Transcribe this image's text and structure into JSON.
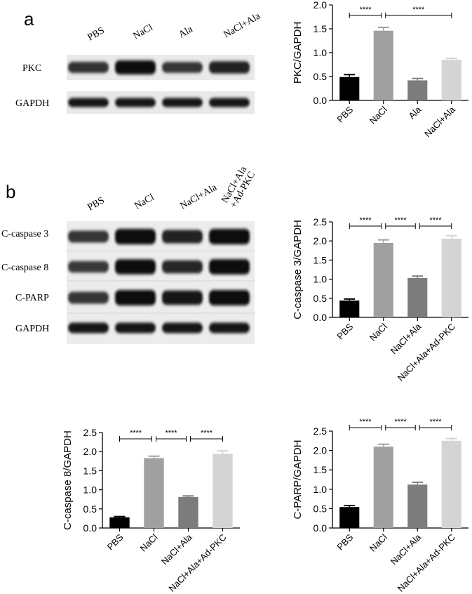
{
  "panels": {
    "a": {
      "label": "a",
      "blot": {
        "lanes": [
          "PBS",
          "NaCl",
          "Ala",
          "NaCl+Ala"
        ],
        "rows": [
          {
            "label": "PKC",
            "intensities": [
              0.55,
              1.0,
              0.5,
              0.72
            ]
          },
          {
            "label": "GAPDH",
            "intensities": [
              0.85,
              0.85,
              0.85,
              0.85
            ]
          }
        ]
      }
    },
    "b": {
      "label": "b",
      "blot": {
        "lanes": [
          "PBS",
          "NaCl",
          "NaCl+Ala",
          "NaCl+Ala\n+Ad-PKC"
        ],
        "rows": [
          {
            "label": "C-caspase 3",
            "intensities": [
              0.5,
              1.0,
              0.72,
              1.0
            ]
          },
          {
            "label": "C-caspase 8",
            "intensities": [
              0.45,
              0.95,
              0.65,
              0.98
            ]
          },
          {
            "label": "C-PARP",
            "intensities": [
              0.5,
              1.0,
              0.85,
              1.0
            ]
          },
          {
            "label": "GAPDH",
            "intensities": [
              0.85,
              0.85,
              0.85,
              0.85
            ]
          }
        ]
      }
    }
  },
  "chart_data": [
    {
      "id": "pkc",
      "type": "bar",
      "ylabel": "PKC/GAPDH",
      "categories": [
        "PBS",
        "NaCl",
        "Ala",
        "NaCl+Ala"
      ],
      "values": [
        0.49,
        1.46,
        0.42,
        0.85
      ],
      "errors": [
        0.05,
        0.07,
        0.04,
        0.03
      ],
      "colors": [
        "#000000",
        "#a0a0a0",
        "#7c7c7c",
        "#d4d4d4"
      ],
      "ylim": [
        0,
        2.0
      ],
      "yticks": [
        "0.0",
        "0.5",
        "1.0",
        "1.5",
        "2.0"
      ],
      "significance": [
        {
          "from": 0,
          "to": 1,
          "label": "****"
        },
        {
          "from": 1,
          "to": 3,
          "label": "****"
        }
      ]
    },
    {
      "id": "casp3",
      "type": "bar",
      "ylabel": "C-caspase 3/GAPDH",
      "categories": [
        "PBS",
        "NaCl",
        "NaCl+Ala",
        "NaCl+Ala+Ad-PKC"
      ],
      "values": [
        0.44,
        1.95,
        1.03,
        2.06
      ],
      "errors": [
        0.04,
        0.08,
        0.05,
        0.08
      ],
      "colors": [
        "#000000",
        "#a0a0a0",
        "#7c7c7c",
        "#d4d4d4"
      ],
      "ylim": [
        0,
        2.5
      ],
      "yticks": [
        "0.0",
        "0.5",
        "1.0",
        "1.5",
        "2.0",
        "2.5"
      ],
      "significance": [
        {
          "from": 0,
          "to": 1,
          "label": "****"
        },
        {
          "from": 1,
          "to": 2,
          "label": "****"
        },
        {
          "from": 2,
          "to": 3,
          "label": "****"
        }
      ]
    },
    {
      "id": "casp8",
      "type": "bar",
      "ylabel": "C-caspase 8/GAPDH",
      "categories": [
        "PBS",
        "NaCl",
        "NaCl+Ala",
        "NaCl+Ala+Ad-PKC"
      ],
      "values": [
        0.28,
        1.83,
        0.81,
        1.94
      ],
      "errors": [
        0.02,
        0.05,
        0.03,
        0.08
      ],
      "colors": [
        "#000000",
        "#a0a0a0",
        "#7c7c7c",
        "#d4d4d4"
      ],
      "ylim": [
        0,
        2.5
      ],
      "yticks": [
        "0.0",
        "0.5",
        "1.0",
        "1.5",
        "2.0",
        "2.5"
      ],
      "significance": [
        {
          "from": 0,
          "to": 1,
          "label": "****"
        },
        {
          "from": 1,
          "to": 2,
          "label": "****"
        },
        {
          "from": 2,
          "to": 3,
          "label": "****"
        }
      ]
    },
    {
      "id": "parp",
      "type": "bar",
      "ylabel": "C-PARP/GAPDH",
      "categories": [
        "PBS",
        "NaCl",
        "NaCl+Ala",
        "NaCl+Ala+Ad-PKC"
      ],
      "values": [
        0.54,
        2.1,
        1.12,
        2.25
      ],
      "errors": [
        0.04,
        0.06,
        0.06,
        0.06
      ],
      "colors": [
        "#000000",
        "#a0a0a0",
        "#7c7c7c",
        "#d4d4d4"
      ],
      "ylim": [
        0,
        2.5
      ],
      "yticks": [
        "0.0",
        "0.5",
        "1.0",
        "1.5",
        "2.0",
        "2.5"
      ],
      "significance": [
        {
          "from": 0,
          "to": 1,
          "label": "****"
        },
        {
          "from": 1,
          "to": 2,
          "label": "****"
        },
        {
          "from": 2,
          "to": 3,
          "label": "****"
        }
      ]
    }
  ]
}
